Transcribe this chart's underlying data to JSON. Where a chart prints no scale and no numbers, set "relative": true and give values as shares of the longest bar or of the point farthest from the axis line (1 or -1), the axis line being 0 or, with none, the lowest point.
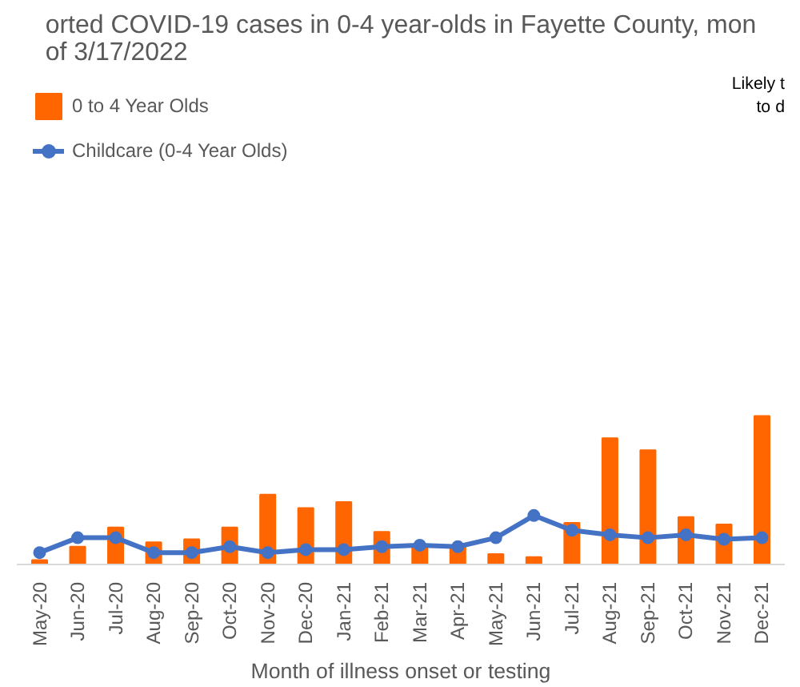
{
  "chart_data": {
    "type": "bar",
    "title": "orted COVID-19 cases in 0-4 year-olds in Fayette County, mon\nof 3/17/2022",
    "xlabel": "Month of illness onset or testing",
    "annotations": [
      "Likely t\nto d"
    ],
    "relative": true,
    "legend": "top left",
    "grid": false,
    "categories": [
      "May-20",
      "Jun-20",
      "Jul-20",
      "Aug-20",
      "Sep-20",
      "Oct-20",
      "Nov-20",
      "Dec-20",
      "Jan-21",
      "Feb-21",
      "Mar-21",
      "Apr-21",
      "May-21",
      "Jun-21",
      "Jul-21",
      "Aug-21",
      "Sep-21",
      "Oct-21",
      "Nov-21",
      "Dec-21"
    ],
    "series": [
      {
        "name": "0 to 4 Year Olds",
        "color": "#ff6600",
        "values": [
          0.03,
          0.12,
          0.25,
          0.15,
          0.17,
          0.25,
          0.47,
          0.38,
          0.42,
          0.22,
          0.13,
          0.13,
          0.07,
          0.05,
          0.28,
          0.85,
          0.77,
          0.32,
          0.27,
          1.0
        ]
      },
      {
        "name": "Childcare (0-4 Year Olds)",
        "type": "line",
        "marker": "circle",
        "color": "#4472c4",
        "values": [
          0.08,
          0.18,
          0.18,
          0.08,
          0.08,
          0.12,
          0.08,
          0.1,
          0.1,
          0.12,
          0.13,
          0.12,
          0.18,
          0.33,
          0.23,
          0.2,
          0.18,
          0.2,
          0.17,
          0.18
        ]
      }
    ]
  }
}
